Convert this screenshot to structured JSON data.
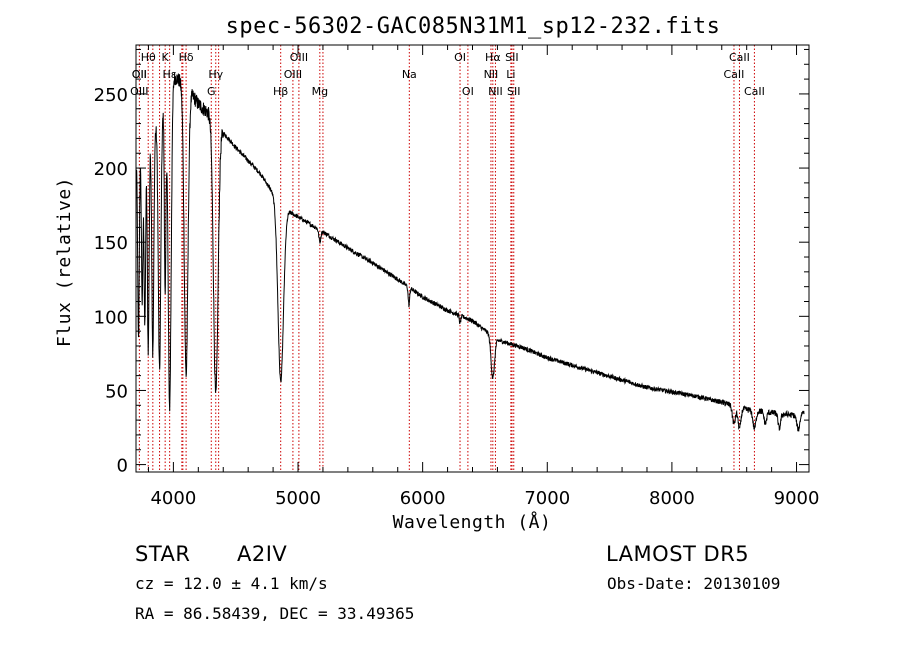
{
  "chart_data": {
    "type": "line",
    "title": "spec-56302-GAC085N31M1_sp12-232.fits",
    "xlabel": "Wavelength (Å)",
    "ylabel": "Flux (relative)",
    "xlim": [
      3700,
      9100
    ],
    "ylim": [
      -5,
      283
    ],
    "xticks": [
      4000,
      5000,
      6000,
      7000,
      8000,
      9000
    ],
    "yticks": [
      0,
      50,
      100,
      150,
      200,
      250
    ],
    "grid": false,
    "continuum": [
      [
        3700,
        200
      ],
      [
        3800,
        218
      ],
      [
        3900,
        235
      ],
      [
        4000,
        262
      ],
      [
        4100,
        256
      ],
      [
        4200,
        243
      ],
      [
        4300,
        236
      ],
      [
        4400,
        224
      ],
      [
        4500,
        214
      ],
      [
        4600,
        205
      ],
      [
        4700,
        196
      ],
      [
        4800,
        183
      ],
      [
        4900,
        172
      ],
      [
        5000,
        167
      ],
      [
        5200,
        157
      ],
      [
        5400,
        146
      ],
      [
        5600,
        136
      ],
      [
        5800,
        125
      ],
      [
        6000,
        113
      ],
      [
        6200,
        104
      ],
      [
        6400,
        97
      ],
      [
        6600,
        84
      ],
      [
        6800,
        79
      ],
      [
        7000,
        72
      ],
      [
        7200,
        67
      ],
      [
        7400,
        62
      ],
      [
        7600,
        57
      ],
      [
        7800,
        52
      ],
      [
        8000,
        49
      ],
      [
        8200,
        46
      ],
      [
        8400,
        42
      ],
      [
        8600,
        37
      ],
      [
        8800,
        35
      ],
      [
        9000,
        33
      ],
      [
        9060,
        36
      ]
    ],
    "absorption_lines": [
      {
        "center": 3720,
        "depth": 120,
        "width": 6
      },
      {
        "center": 3750,
        "depth": 100,
        "width": 6
      },
      {
        "center": 3771,
        "depth": 120,
        "width": 6
      },
      {
        "center": 3798,
        "depth": 140,
        "width": 7
      },
      {
        "center": 3835,
        "depth": 150,
        "width": 8
      },
      {
        "center": 3889,
        "depth": 170,
        "width": 10
      },
      {
        "center": 3934,
        "depth": 130,
        "width": 6
      },
      {
        "center": 3970,
        "depth": 215,
        "width": 12
      },
      {
        "center": 4102,
        "depth": 195,
        "width": 15
      },
      {
        "center": 4340,
        "depth": 185,
        "width": 18
      },
      {
        "center": 4861,
        "depth": 120,
        "width": 22
      },
      {
        "center": 5175,
        "depth": 8,
        "width": 8
      },
      {
        "center": 5890,
        "depth": 12,
        "width": 6
      },
      {
        "center": 6300,
        "depth": 5,
        "width": 6
      },
      {
        "center": 6563,
        "depth": 28,
        "width": 14
      },
      {
        "center": 8498,
        "depth": 12,
        "width": 12
      },
      {
        "center": 8542,
        "depth": 14,
        "width": 12
      },
      {
        "center": 8662,
        "depth": 12,
        "width": 12
      },
      {
        "center": 8750,
        "depth": 8,
        "width": 10
      },
      {
        "center": 8862,
        "depth": 10,
        "width": 10
      },
      {
        "center": 9015,
        "depth": 10,
        "width": 12
      }
    ],
    "line_markers": [
      {
        "label": "Hθ",
        "wavelength": 3798,
        "row": 0
      },
      {
        "label": "K",
        "wavelength": 3934,
        "row": 0
      },
      {
        "label": "Hδ",
        "wavelength": 4102,
        "row": 0
      },
      {
        "label": "OIII",
        "wavelength": 5007,
        "row": 0
      },
      {
        "label": "OI",
        "wavelength": 6300,
        "row": 0
      },
      {
        "label": "Hα",
        "wavelength": 6563,
        "row": 0
      },
      {
        "label": "SII",
        "wavelength": 6716,
        "row": 0
      },
      {
        "label": "CaII",
        "wavelength": 8542,
        "row": 0
      },
      {
        "label": "OII",
        "wavelength": 3727,
        "row": 1
      },
      {
        "label": "Hε",
        "wavelength": 3970,
        "row": 1
      },
      {
        "label": "OII",
        "wavelength": 3727,
        "row": 1
      },
      {
        "label": "Hγ",
        "wavelength": 4340,
        "row": 1
      },
      {
        "label": "OIII",
        "wavelength": 4959,
        "row": 1
      },
      {
        "label": "Na",
        "wavelength": 5893,
        "row": 1
      },
      {
        "label": "NII",
        "wavelength": 6548,
        "row": 1
      },
      {
        "label": "Li",
        "wavelength": 6708,
        "row": 1
      },
      {
        "label": "CaII",
        "wavelength": 8498,
        "row": 1
      },
      {
        "label": "OIII",
        "wavelength": 3727,
        "row": 2
      },
      {
        "label": "G",
        "wavelength": 4304,
        "row": 2
      },
      {
        "label": "Hβ",
        "wavelength": 4861,
        "row": 2
      },
      {
        "label": "Mg",
        "wavelength": 5175,
        "row": 2
      },
      {
        "label": "OI",
        "wavelength": 6363,
        "row": 2
      },
      {
        "label": "NII",
        "wavelength": 6584,
        "row": 2
      },
      {
        "label": "SII",
        "wavelength": 6731,
        "row": 2
      },
      {
        "label": "CaII",
        "wavelength": 8662,
        "row": 2
      }
    ],
    "marker_extra_lines": [
      3835,
      3889,
      4068,
      4076,
      4363,
      5200,
      6717,
      6731,
      8498,
      8542,
      8662
    ]
  },
  "info": {
    "class": "STAR",
    "subclass": "A2IV",
    "survey": "LAMOST DR5",
    "cz": "cz = 12.0 ± 4.1 km/s",
    "obs_date": "Obs-Date: 20130109",
    "radec": "RA =  86.58439, DEC =  33.49365"
  }
}
